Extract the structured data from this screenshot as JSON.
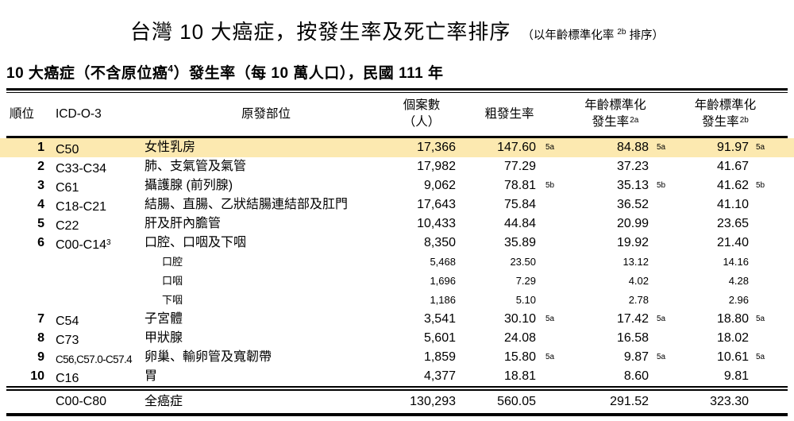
{
  "page": {
    "title": "台灣 10 大癌症，按發生率及死亡率排序",
    "title_note_pre": "（以年齡標準化率 ",
    "title_note_sup": "2b",
    "title_note_post": " 排序）",
    "subtitle_pre": "10 大癌症（不含原位癌",
    "subtitle_sup": "4",
    "subtitle_post": "）發生率（每 10 萬人口），民國 111 年"
  },
  "colors": {
    "highlight": "#FCE9B0"
  },
  "table": {
    "headers": {
      "rank": "順位",
      "icd": "ICD-O-3",
      "site": "原發部位",
      "cases_line1": "個案數",
      "cases_line2": "（人）",
      "crude": "粗發生率",
      "asr_line1": "年齡標準化",
      "asr_line2": "發生率",
      "asr2a_sup": "2a",
      "asr2b_sup": "2b"
    },
    "rows": [
      {
        "rank": "1",
        "icd": "C50",
        "site": "女性乳房",
        "cases": "17,366",
        "crude": "147.60",
        "crude_mark": "5a",
        "asr2a": "84.88",
        "asr2a_mark": "5a",
        "asr2b": "91.97",
        "asr2b_mark": "5a",
        "highlight": true
      },
      {
        "rank": "2",
        "icd": "C33-C34",
        "site": "肺、支氣管及氣管",
        "cases": "17,982",
        "crude": "77.29",
        "asr2a": "37.23",
        "asr2b": "41.67"
      },
      {
        "rank": "3",
        "icd": "C61",
        "site": "攝護腺 (前列腺)",
        "cases": "9,062",
        "crude": "78.81",
        "crude_mark": "5b",
        "asr2a": "35.13",
        "asr2a_mark": "5b",
        "asr2b": "41.62",
        "asr2b_mark": "5b"
      },
      {
        "rank": "4",
        "icd": "C18-C21",
        "site": "結腸、直腸、乙狀結腸連結部及肛門",
        "cases": "17,643",
        "crude": "75.84",
        "asr2a": "36.52",
        "asr2b": "41.10"
      },
      {
        "rank": "5",
        "icd": "C22",
        "site": "肝及肝內膽管",
        "cases": "10,433",
        "crude": "44.84",
        "asr2a": "20.99",
        "asr2b": "23.65"
      },
      {
        "rank": "6",
        "icd": "C00-C14",
        "icd_sup": "3",
        "site": "口腔、口咽及下咽",
        "cases": "8,350",
        "crude": "35.89",
        "asr2a": "19.92",
        "asr2b": "21.40"
      },
      {
        "sub": true,
        "site": "口腔",
        "cases": "5,468",
        "crude": "23.50",
        "asr2a": "13.12",
        "asr2b": "14.16"
      },
      {
        "sub": true,
        "site": "口咽",
        "cases": "1,696",
        "crude": "7.29",
        "asr2a": "4.02",
        "asr2b": "4.28"
      },
      {
        "sub": true,
        "site": "下咽",
        "cases": "1,186",
        "crude": "5.10",
        "asr2a": "2.78",
        "asr2b": "2.96"
      },
      {
        "rank": "7",
        "icd": "C54",
        "site": "子宮體",
        "cases": "3,541",
        "crude": "30.10",
        "crude_mark": "5a",
        "asr2a": "17.42",
        "asr2a_mark": "5a",
        "asr2b": "18.80",
        "asr2b_mark": "5a"
      },
      {
        "rank": "8",
        "icd": "C73",
        "site": "甲狀腺",
        "cases": "5,601",
        "crude": "24.08",
        "asr2a": "16.58",
        "asr2b": "18.02"
      },
      {
        "rank": "9",
        "icd": "C56,C57.0-C57.4",
        "icd_narrow": true,
        "site": "卵巢、輸卵管及寬韌帶",
        "cases": "1,859",
        "crude": "15.80",
        "crude_mark": "5a",
        "asr2a": "9.87",
        "asr2a_mark": "5a",
        "asr2b": "10.61",
        "asr2b_mark": "5a"
      },
      {
        "rank": "10",
        "icd": "C16",
        "site": "胃",
        "cases": "4,377",
        "crude": "18.81",
        "asr2a": "8.60",
        "asr2b": "9.81"
      }
    ],
    "total": {
      "icd": "C00-C80",
      "site": "全癌症",
      "cases": "130,293",
      "crude": "560.05",
      "asr2a": "291.52",
      "asr2b": "323.30"
    }
  }
}
